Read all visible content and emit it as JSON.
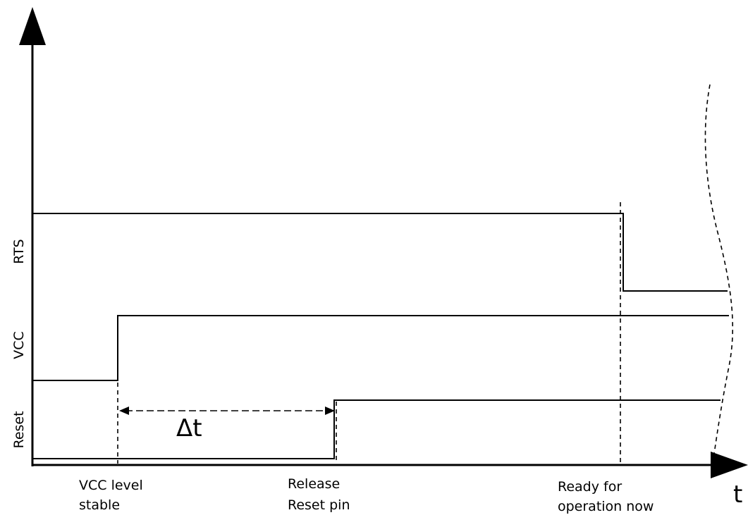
{
  "diagram": {
    "axis_label_x": "t",
    "delta_label": "Δt",
    "signals": {
      "rts": "RTS",
      "vcc": "VCC",
      "reset": "Reset"
    },
    "events": {
      "vcc_stable_line1": "VCC level",
      "vcc_stable_line2": "stable",
      "release_line1": "Release",
      "release_line2": "Reset pin",
      "ready_line1": "Ready for",
      "ready_line2": "operation now"
    }
  }
}
